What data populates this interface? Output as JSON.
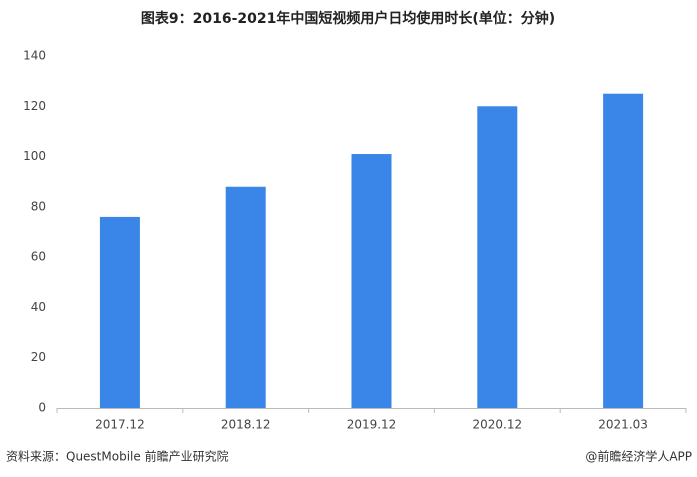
{
  "chart_data": {
    "type": "bar",
    "title": "图表9：2016-2021年中国短视频用户日均使用时长(单位：分钟)",
    "categories": [
      "2017.12",
      "2018.12",
      "2019.12",
      "2020.12",
      "2021.03"
    ],
    "values": [
      76,
      88,
      101,
      120,
      125
    ],
    "color": "#3a86e8",
    "ylim": [
      0,
      140
    ],
    "yticks": [
      0,
      20,
      40,
      60,
      80,
      100,
      120,
      140
    ],
    "grid": false,
    "source": "资料来源：QuestMobile 前瞻产业研究院",
    "credit": "@前瞻经济学人APP"
  }
}
